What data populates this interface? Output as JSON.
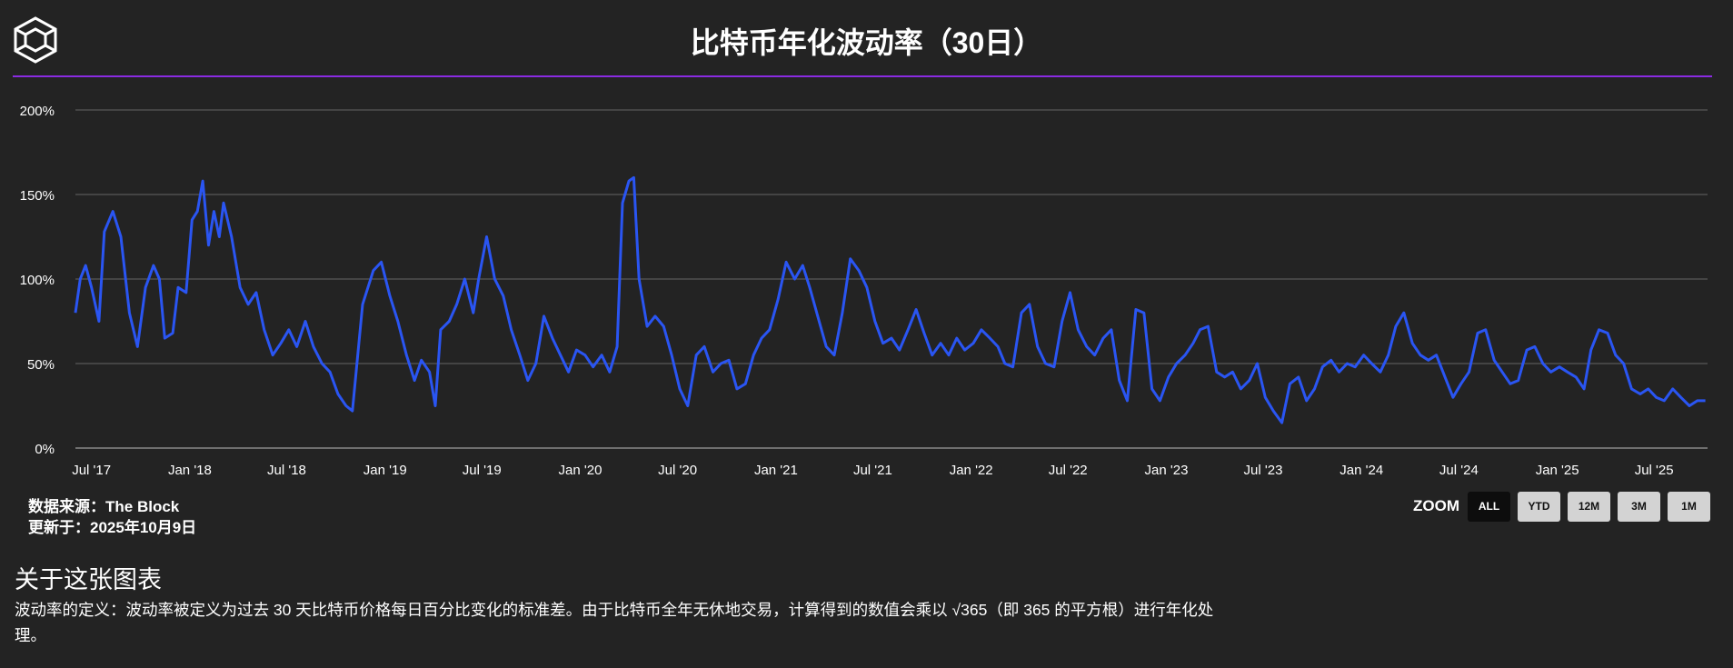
{
  "header": {
    "logo_icon": "the-block-cube-icon",
    "title": "比特币年化波动率（30日）"
  },
  "colors": {
    "background": "#232323",
    "accent_rule": "#8a2be2",
    "line": "#2a55f2",
    "grid": "#666666"
  },
  "source": {
    "line1": "数据来源：The Block",
    "line2": "更新于：2025年10月9日"
  },
  "zoom": {
    "label": "ZOOM",
    "buttons": [
      {
        "label": "ALL",
        "active": true
      },
      {
        "label": "YTD",
        "active": false
      },
      {
        "label": "12M",
        "active": false
      },
      {
        "label": "3M",
        "active": false
      },
      {
        "label": "1M",
        "active": false
      }
    ]
  },
  "about": {
    "title": "关于这张图表",
    "text": "波动率的定义：波动率被定义为过去 30 天比特币价格每日百分比变化的标准差。由于比特币全年无休地交易，计算得到的数值会乘以 √365（即 365 的平方根）进行年化处理。"
  },
  "chart_data": {
    "type": "line",
    "title": "比特币年化波动率（30日）",
    "xlabel": "",
    "ylabel": "",
    "ylim": [
      0,
      200
    ],
    "xlim": [
      "2017-06-01",
      "2025-10-09"
    ],
    "grid": true,
    "y_ticks": [
      "0%",
      "50%",
      "100%",
      "150%",
      "200%"
    ],
    "y_tick_values": [
      0,
      50,
      100,
      150,
      200
    ],
    "x_ticks": [
      {
        "date": "2017-07-01",
        "label": "Jul '17"
      },
      {
        "date": "2018-01-01",
        "label": "Jan '18"
      },
      {
        "date": "2018-07-01",
        "label": "Jul '18"
      },
      {
        "date": "2019-01-01",
        "label": "Jan '19"
      },
      {
        "date": "2019-07-01",
        "label": "Jul '19"
      },
      {
        "date": "2020-01-01",
        "label": "Jan '20"
      },
      {
        "date": "2020-07-01",
        "label": "Jul '20"
      },
      {
        "date": "2021-01-01",
        "label": "Jan '21"
      },
      {
        "date": "2021-07-01",
        "label": "Jul '21"
      },
      {
        "date": "2022-01-01",
        "label": "Jan '22"
      },
      {
        "date": "2022-07-01",
        "label": "Jul '22"
      },
      {
        "date": "2023-01-01",
        "label": "Jan '23"
      },
      {
        "date": "2023-07-01",
        "label": "Jul '23"
      },
      {
        "date": "2024-01-01",
        "label": "Jan '24"
      },
      {
        "date": "2024-07-01",
        "label": "Jul '24"
      },
      {
        "date": "2025-01-01",
        "label": "Jan '25"
      },
      {
        "date": "2025-07-01",
        "label": "Jul '25"
      }
    ],
    "series": [
      {
        "name": "",
        "color": "#2a55f2",
        "points": [
          [
            "2017-06-01",
            80
          ],
          [
            "2017-06-10",
            100
          ],
          [
            "2017-06-20",
            108
          ],
          [
            "2017-07-01",
            95
          ],
          [
            "2017-07-15",
            75
          ],
          [
            "2017-07-25",
            128
          ],
          [
            "2017-08-10",
            140
          ],
          [
            "2017-08-25",
            125
          ],
          [
            "2017-09-10",
            80
          ],
          [
            "2017-09-25",
            60
          ],
          [
            "2017-10-10",
            95
          ],
          [
            "2017-10-25",
            108
          ],
          [
            "2017-11-05",
            100
          ],
          [
            "2017-11-15",
            65
          ],
          [
            "2017-11-30",
            68
          ],
          [
            "2017-12-10",
            95
          ],
          [
            "2017-12-25",
            92
          ],
          [
            "2018-01-05",
            135
          ],
          [
            "2018-01-15",
            140
          ],
          [
            "2018-01-25",
            158
          ],
          [
            "2018-02-05",
            120
          ],
          [
            "2018-02-15",
            140
          ],
          [
            "2018-02-25",
            125
          ],
          [
            "2018-03-05",
            145
          ],
          [
            "2018-03-20",
            125
          ],
          [
            "2018-04-05",
            95
          ],
          [
            "2018-04-20",
            85
          ],
          [
            "2018-05-05",
            92
          ],
          [
            "2018-05-20",
            70
          ],
          [
            "2018-06-05",
            55
          ],
          [
            "2018-06-20",
            62
          ],
          [
            "2018-07-05",
            70
          ],
          [
            "2018-07-20",
            60
          ],
          [
            "2018-08-05",
            75
          ],
          [
            "2018-08-20",
            60
          ],
          [
            "2018-09-05",
            50
          ],
          [
            "2018-09-20",
            45
          ],
          [
            "2018-10-05",
            32
          ],
          [
            "2018-10-20",
            25
          ],
          [
            "2018-11-01",
            22
          ],
          [
            "2018-11-20",
            85
          ],
          [
            "2018-12-10",
            105
          ],
          [
            "2018-12-25",
            110
          ],
          [
            "2019-01-10",
            90
          ],
          [
            "2019-01-25",
            75
          ],
          [
            "2019-02-10",
            55
          ],
          [
            "2019-02-25",
            40
          ],
          [
            "2019-03-10",
            52
          ],
          [
            "2019-03-25",
            45
          ],
          [
            "2019-04-05",
            25
          ],
          [
            "2019-04-15",
            70
          ],
          [
            "2019-05-01",
            75
          ],
          [
            "2019-05-15",
            85
          ],
          [
            "2019-05-30",
            100
          ],
          [
            "2019-06-15",
            80
          ],
          [
            "2019-06-25",
            100
          ],
          [
            "2019-07-10",
            125
          ],
          [
            "2019-07-25",
            100
          ],
          [
            "2019-08-10",
            90
          ],
          [
            "2019-08-25",
            70
          ],
          [
            "2019-09-10",
            55
          ],
          [
            "2019-09-25",
            40
          ],
          [
            "2019-10-10",
            50
          ],
          [
            "2019-10-25",
            78
          ],
          [
            "2019-11-10",
            65
          ],
          [
            "2019-11-25",
            55
          ],
          [
            "2019-12-10",
            45
          ],
          [
            "2019-12-25",
            58
          ],
          [
            "2020-01-10",
            55
          ],
          [
            "2020-01-25",
            48
          ],
          [
            "2020-02-10",
            55
          ],
          [
            "2020-02-25",
            45
          ],
          [
            "2020-03-10",
            60
          ],
          [
            "2020-03-20",
            145
          ],
          [
            "2020-04-01",
            158
          ],
          [
            "2020-04-10",
            160
          ],
          [
            "2020-04-20",
            100
          ],
          [
            "2020-05-05",
            72
          ],
          [
            "2020-05-20",
            78
          ],
          [
            "2020-06-05",
            72
          ],
          [
            "2020-06-20",
            55
          ],
          [
            "2020-07-05",
            35
          ],
          [
            "2020-07-20",
            25
          ],
          [
            "2020-08-05",
            55
          ],
          [
            "2020-08-20",
            60
          ],
          [
            "2020-09-05",
            45
          ],
          [
            "2020-09-20",
            50
          ],
          [
            "2020-10-05",
            52
          ],
          [
            "2020-10-20",
            35
          ],
          [
            "2020-11-05",
            38
          ],
          [
            "2020-11-20",
            55
          ],
          [
            "2020-12-05",
            65
          ],
          [
            "2020-12-20",
            70
          ],
          [
            "2021-01-05",
            88
          ],
          [
            "2021-01-20",
            110
          ],
          [
            "2021-02-05",
            100
          ],
          [
            "2021-02-20",
            108
          ],
          [
            "2021-03-05",
            95
          ],
          [
            "2021-03-20",
            78
          ],
          [
            "2021-04-05",
            60
          ],
          [
            "2021-04-20",
            55
          ],
          [
            "2021-05-05",
            80
          ],
          [
            "2021-05-20",
            112
          ],
          [
            "2021-06-05",
            105
          ],
          [
            "2021-06-20",
            95
          ],
          [
            "2021-07-05",
            75
          ],
          [
            "2021-07-20",
            62
          ],
          [
            "2021-08-05",
            65
          ],
          [
            "2021-08-20",
            58
          ],
          [
            "2021-09-05",
            70
          ],
          [
            "2021-09-20",
            82
          ],
          [
            "2021-10-05",
            68
          ],
          [
            "2021-10-20",
            55
          ],
          [
            "2021-11-05",
            62
          ],
          [
            "2021-11-20",
            55
          ],
          [
            "2021-12-05",
            65
          ],
          [
            "2021-12-20",
            58
          ],
          [
            "2022-01-05",
            62
          ],
          [
            "2022-01-20",
            70
          ],
          [
            "2022-02-05",
            65
          ],
          [
            "2022-02-20",
            60
          ],
          [
            "2022-03-05",
            50
          ],
          [
            "2022-03-20",
            48
          ],
          [
            "2022-04-05",
            80
          ],
          [
            "2022-04-20",
            85
          ],
          [
            "2022-05-05",
            60
          ],
          [
            "2022-05-20",
            50
          ],
          [
            "2022-06-05",
            48
          ],
          [
            "2022-06-20",
            75
          ],
          [
            "2022-07-05",
            92
          ],
          [
            "2022-07-20",
            70
          ],
          [
            "2022-08-05",
            60
          ],
          [
            "2022-08-20",
            55
          ],
          [
            "2022-09-05",
            65
          ],
          [
            "2022-09-20",
            70
          ],
          [
            "2022-10-05",
            40
          ],
          [
            "2022-10-20",
            28
          ],
          [
            "2022-11-05",
            82
          ],
          [
            "2022-11-20",
            80
          ],
          [
            "2022-12-05",
            35
          ],
          [
            "2022-12-20",
            28
          ],
          [
            "2023-01-05",
            42
          ],
          [
            "2023-01-20",
            50
          ],
          [
            "2023-02-05",
            55
          ],
          [
            "2023-02-20",
            62
          ],
          [
            "2023-03-05",
            70
          ],
          [
            "2023-03-20",
            72
          ],
          [
            "2023-04-05",
            45
          ],
          [
            "2023-04-20",
            42
          ],
          [
            "2023-05-05",
            45
          ],
          [
            "2023-05-20",
            35
          ],
          [
            "2023-06-05",
            40
          ],
          [
            "2023-06-20",
            50
          ],
          [
            "2023-07-05",
            30
          ],
          [
            "2023-07-20",
            22
          ],
          [
            "2023-08-05",
            15
          ],
          [
            "2023-08-20",
            38
          ],
          [
            "2023-09-05",
            42
          ],
          [
            "2023-09-20",
            28
          ],
          [
            "2023-10-05",
            35
          ],
          [
            "2023-10-20",
            48
          ],
          [
            "2023-11-05",
            52
          ],
          [
            "2023-11-20",
            45
          ],
          [
            "2023-12-05",
            50
          ],
          [
            "2023-12-20",
            48
          ],
          [
            "2024-01-05",
            55
          ],
          [
            "2024-01-20",
            50
          ],
          [
            "2024-02-05",
            45
          ],
          [
            "2024-02-20",
            55
          ],
          [
            "2024-03-05",
            72
          ],
          [
            "2024-03-20",
            80
          ],
          [
            "2024-04-05",
            62
          ],
          [
            "2024-04-20",
            55
          ],
          [
            "2024-05-05",
            52
          ],
          [
            "2024-05-20",
            55
          ],
          [
            "2024-06-05",
            42
          ],
          [
            "2024-06-20",
            30
          ],
          [
            "2024-07-05",
            38
          ],
          [
            "2024-07-20",
            45
          ],
          [
            "2024-08-05",
            68
          ],
          [
            "2024-08-20",
            70
          ],
          [
            "2024-09-05",
            52
          ],
          [
            "2024-09-20",
            45
          ],
          [
            "2024-10-05",
            38
          ],
          [
            "2024-10-20",
            40
          ],
          [
            "2024-11-05",
            58
          ],
          [
            "2024-11-20",
            60
          ],
          [
            "2024-12-05",
            50
          ],
          [
            "2024-12-20",
            45
          ],
          [
            "2025-01-05",
            48
          ],
          [
            "2025-01-20",
            45
          ],
          [
            "2025-02-05",
            42
          ],
          [
            "2025-02-20",
            35
          ],
          [
            "2025-03-05",
            58
          ],
          [
            "2025-03-20",
            70
          ],
          [
            "2025-04-05",
            68
          ],
          [
            "2025-04-20",
            55
          ],
          [
            "2025-05-05",
            50
          ],
          [
            "2025-05-20",
            35
          ],
          [
            "2025-06-05",
            32
          ],
          [
            "2025-06-20",
            35
          ],
          [
            "2025-07-05",
            30
          ],
          [
            "2025-07-20",
            28
          ],
          [
            "2025-08-05",
            35
          ],
          [
            "2025-08-20",
            30
          ],
          [
            "2025-09-05",
            25
          ],
          [
            "2025-09-20",
            28
          ],
          [
            "2025-10-05",
            28
          ]
        ]
      }
    ]
  }
}
